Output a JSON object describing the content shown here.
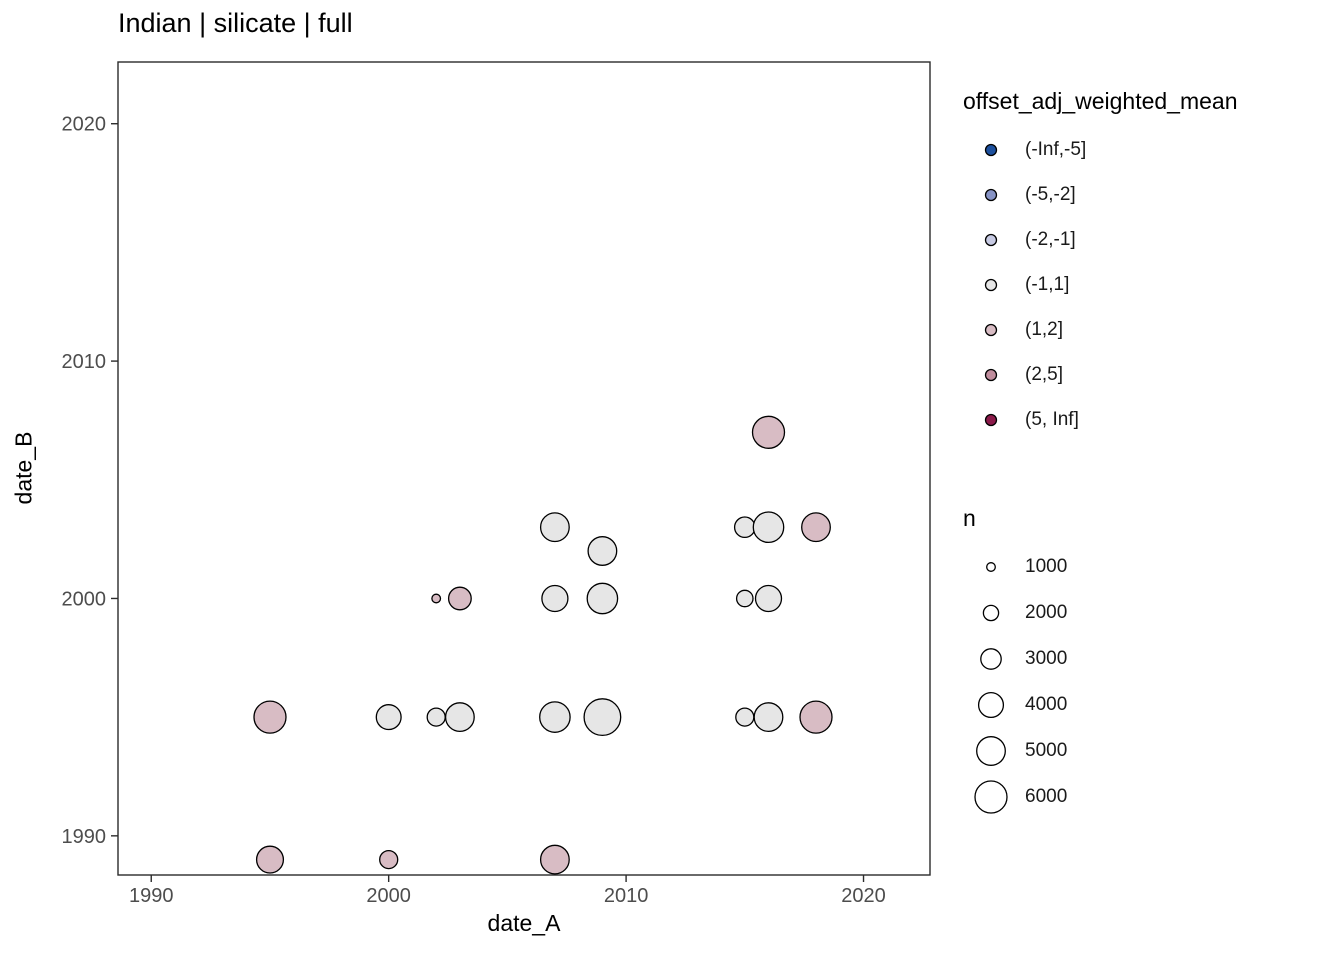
{
  "title": "Indian | silicate | full",
  "chart_data": {
    "type": "scatter",
    "title": "Indian | silicate | full",
    "xlabel": "date_A",
    "ylabel": "date_B",
    "xlim": [
      1988.6,
      2022.8
    ],
    "ylim": [
      1988.35,
      2022.6
    ],
    "x_ticks": [
      1990,
      2000,
      2010,
      2020
    ],
    "y_ticks": [
      1990,
      2000,
      2010,
      2020
    ],
    "grid": false,
    "legend_position": "right",
    "size_scale": {
      "n_ref": [
        1000,
        6000
      ],
      "r_ref": [
        4.3,
        16
      ]
    },
    "points": [
      {
        "x": 1995,
        "y": 1989,
        "n": 4500,
        "bin": "(1,2]"
      },
      {
        "x": 1995,
        "y": 1995,
        "n": 6000,
        "bin": "(1,2]"
      },
      {
        "x": 2000,
        "y": 1989,
        "n": 2500,
        "bin": "(1,2]"
      },
      {
        "x": 2000,
        "y": 1995,
        "n": 4000,
        "bin": "(-1,1]"
      },
      {
        "x": 2002,
        "y": 1995,
        "n": 2500,
        "bin": "(-1,1]"
      },
      {
        "x": 2002,
        "y": 2000,
        "n": 1000,
        "bin": "(1,2]"
      },
      {
        "x": 2003,
        "y": 1995,
        "n": 5000,
        "bin": "(-1,1]"
      },
      {
        "x": 2003,
        "y": 2000,
        "n": 3500,
        "bin": "(1,2]"
      },
      {
        "x": 2007,
        "y": 1989,
        "n": 5000,
        "bin": "(1,2]"
      },
      {
        "x": 2007,
        "y": 1995,
        "n": 5500,
        "bin": "(-1,1]"
      },
      {
        "x": 2007,
        "y": 2000,
        "n": 4300,
        "bin": "(-1,1]"
      },
      {
        "x": 2007,
        "y": 2003,
        "n": 5000,
        "bin": "(-1,1]"
      },
      {
        "x": 2009,
        "y": 1995,
        "n": 7500,
        "bin": "(-1,1]"
      },
      {
        "x": 2009,
        "y": 2000,
        "n": 5500,
        "bin": "(-1,1]"
      },
      {
        "x": 2009,
        "y": 2002,
        "n": 5000,
        "bin": "(-1,1]"
      },
      {
        "x": 2015,
        "y": 1995,
        "n": 2500,
        "bin": "(-1,1]"
      },
      {
        "x": 2015,
        "y": 2000,
        "n": 2200,
        "bin": "(-1,1]"
      },
      {
        "x": 2015,
        "y": 2003,
        "n": 3000,
        "bin": "(-1,1]"
      },
      {
        "x": 2016,
        "y": 1995,
        "n": 5000,
        "bin": "(-1,1]"
      },
      {
        "x": 2016,
        "y": 2000,
        "n": 4300,
        "bin": "(-1,1]"
      },
      {
        "x": 2016,
        "y": 2003,
        "n": 5500,
        "bin": "(-1,1]"
      },
      {
        "x": 2016,
        "y": 2007,
        "n": 6000,
        "bin": "(1,2]"
      },
      {
        "x": 2018,
        "y": 1995,
        "n": 6000,
        "bin": "(1,2]"
      },
      {
        "x": 2018,
        "y": 2003,
        "n": 5000,
        "bin": "(1,2]"
      }
    ]
  },
  "legend_color": {
    "title": "offset_adj_weighted_mean",
    "items": [
      {
        "label": "(-Inf,-5]",
        "color": "#1d509e"
      },
      {
        "label": "(-5,-2]",
        "color": "#8793c5"
      },
      {
        "label": "(-2,-1]",
        "color": "#c7cae3"
      },
      {
        "label": "(-1,1]",
        "color": "#e6e6e6"
      },
      {
        "label": "(1,2]",
        "color": "#d8bcc4"
      },
      {
        "label": "(2,5]",
        "color": "#c08d9d"
      },
      {
        "label": "(5, Inf]",
        "color": "#8b1a4a"
      }
    ]
  },
  "legend_size": {
    "title": "n",
    "items": [
      {
        "label": "1000",
        "n": 1000
      },
      {
        "label": "2000",
        "n": 2000
      },
      {
        "label": "3000",
        "n": 3000
      },
      {
        "label": "4000",
        "n": 4000
      },
      {
        "label": "5000",
        "n": 5000
      },
      {
        "label": "6000",
        "n": 6000
      }
    ]
  },
  "colors": {
    "panel_border": "#2b2b2b",
    "tick_label": "#4d4d4d",
    "point_stroke": "#000000",
    "background": "#ffffff"
  }
}
